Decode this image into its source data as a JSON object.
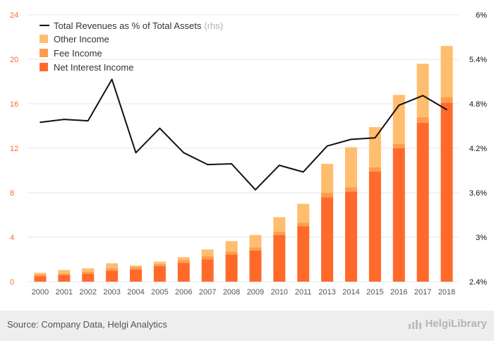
{
  "chart_data": {
    "type": "bar",
    "stacked": true,
    "categories": [
      "2000",
      "2001",
      "2002",
      "2003",
      "2004",
      "2005",
      "2006",
      "2007",
      "2008",
      "2009",
      "2010",
      "2011",
      "2013",
      "2014",
      "2015",
      "2016",
      "2017",
      "2018"
    ],
    "series": [
      {
        "name": "Net Interest Income",
        "color": "#ff6a2b",
        "values": [
          0.5,
          0.6,
          0.7,
          1.0,
          1.1,
          1.4,
          1.7,
          2.0,
          2.45,
          2.8,
          4.2,
          5.0,
          7.6,
          8.1,
          9.9,
          12.0,
          14.3,
          16.1
        ]
      },
      {
        "name": "Fee Income",
        "color": "#ff9d4d",
        "values": [
          0.15,
          0.15,
          0.2,
          0.2,
          0.2,
          0.2,
          0.25,
          0.3,
          0.25,
          0.3,
          0.3,
          0.3,
          0.4,
          0.4,
          0.4,
          0.4,
          0.5,
          0.5
        ]
      },
      {
        "name": "Other Income",
        "color": "#ffbe6f",
        "values": [
          0.15,
          0.3,
          0.3,
          0.45,
          0.15,
          0.2,
          0.25,
          0.6,
          0.95,
          1.1,
          1.3,
          1.7,
          2.6,
          3.6,
          3.6,
          4.4,
          4.8,
          4.6
        ]
      }
    ],
    "line": {
      "name": "Total Revenues as % of Total Assets",
      "name_suffix": "(rhs)",
      "color": "#111111",
      "values": [
        4.55,
        4.59,
        4.57,
        5.13,
        4.14,
        4.47,
        4.14,
        3.98,
        3.99,
        3.64,
        3.97,
        3.88,
        4.23,
        4.32,
        4.34,
        4.78,
        4.91,
        4.72
      ]
    },
    "y_left": {
      "min": 0,
      "max": 24,
      "ticks": [
        "0",
        "4",
        "8",
        "12",
        "16",
        "20",
        "24"
      ]
    },
    "y_right": {
      "min": 2.4,
      "max": 6.0,
      "ticks": [
        "2.4%",
        "3%",
        "3.6%",
        "4.2%",
        "4.8%",
        "5.4%",
        "6%"
      ]
    },
    "grid": true,
    "legend_placement": "top-left"
  },
  "footer": {
    "source": "Source: Company Data, Helgi Analytics",
    "logo_text": "HelgiLibrary"
  },
  "colors": {
    "left_axis_text": "#ff6a2b",
    "right_axis_text": "#111111",
    "grid": "#e6e6e6",
    "legend_suffix": "#b0b0b0",
    "footer_bg": "#eeeeee"
  }
}
